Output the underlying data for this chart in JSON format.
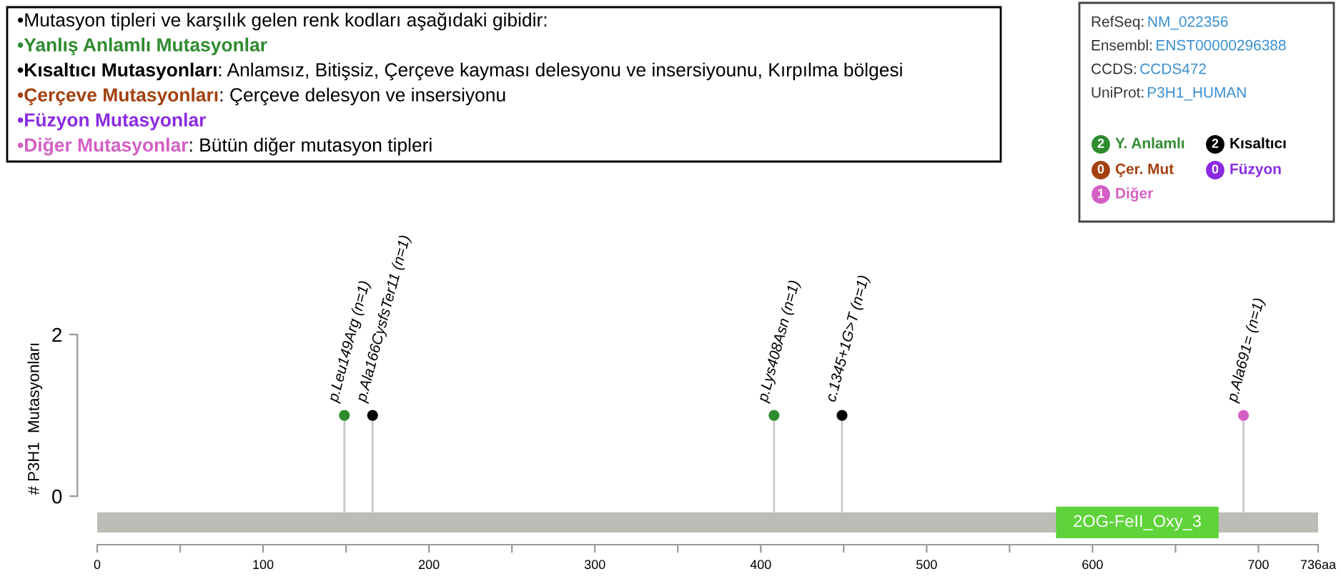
{
  "chart_data": {
    "type": "lollipop",
    "xlabel": null,
    "ylabel": "# P3H1  Mutasyonları",
    "xlim": [
      0,
      736
    ],
    "xticks": [
      0,
      {
        "value": 50,
        "label": null
      },
      100,
      {
        "value": 150,
        "label": null
      },
      200,
      {
        "value": 250,
        "label": null
      },
      300,
      {
        "value": 350,
        "label": null
      },
      400,
      {
        "value": 450,
        "label": null
      },
      500,
      {
        "value": 550,
        "label": null
      },
      600,
      {
        "value": 650,
        "label": null
      },
      700,
      {
        "value": 736,
        "label": "736aa"
      }
    ],
    "ylim": [
      -0.6,
      2
    ],
    "yticks": [
      0,
      2
    ],
    "series": [
      {
        "name": "Y. Anlamlı",
        "color": "#2e8b2e",
        "x": [
          149,
          408
        ],
        "values": [
          1,
          1
        ],
        "value_labels": [
          "p.Leu149Arg (n=1)",
          "p.Lys408Asn (n=1)"
        ]
      },
      {
        "name": "Kısaltıcı",
        "color": "#000000",
        "x": [
          166,
          449
        ],
        "values": [
          1,
          1
        ],
        "value_labels": [
          "p.Ala166CysfsTer11 (n=1)",
          "c.1345+1G>T (n=1)"
        ]
      },
      {
        "name": "Çer. Mut",
        "color": "#a4400f"
      },
      {
        "name": "Füzyon",
        "color": "#8a2be2"
      },
      {
        "name": "Diğer",
        "color": "#d35fc4",
        "x": [
          691
        ],
        "values": [
          1
        ],
        "value_labels": [
          "p.Ala691= (n=1)"
        ]
      }
    ],
    "bands": [
      {
        "axis": "x",
        "from": 0,
        "to": 736,
        "label": null,
        "color": "#bdbdb7"
      },
      {
        "axis": "x",
        "from": 578,
        "to": 676,
        "label": "2OG-FeII_Oxy_3",
        "color": "#5fd33a"
      }
    ],
    "annotations": [
      "•Mutasyon tipleri ve karşılık gelen renk kodları aşağıdaki gibidir:",
      "•Yanlış Anlamlı Mutasyonlar",
      "•Kısaltıcı Mutasyonları: Anlamsız, Bitişsiz, Çerçeve kayması delesyonu ve insersiyounu, Kırpılma bölgesi",
      "•Çerçeve Mutasyonları: Çerçeve delesyon ve insersiyonu",
      "•Füzyon Mutasyonlar",
      "•Diğer Mutasyonlar: Bütün diğer mutasyon tipleri",
      "RefSeq: NM_022356",
      "Ensembl: ENST00000296388",
      "CCDS: CCDS472",
      "UniProt: P3H1_HUMAN",
      "2",
      "2",
      "0",
      "0",
      "1"
    ],
    "grid": false,
    "legend": "top right",
    "marker": "circle"
  }
}
